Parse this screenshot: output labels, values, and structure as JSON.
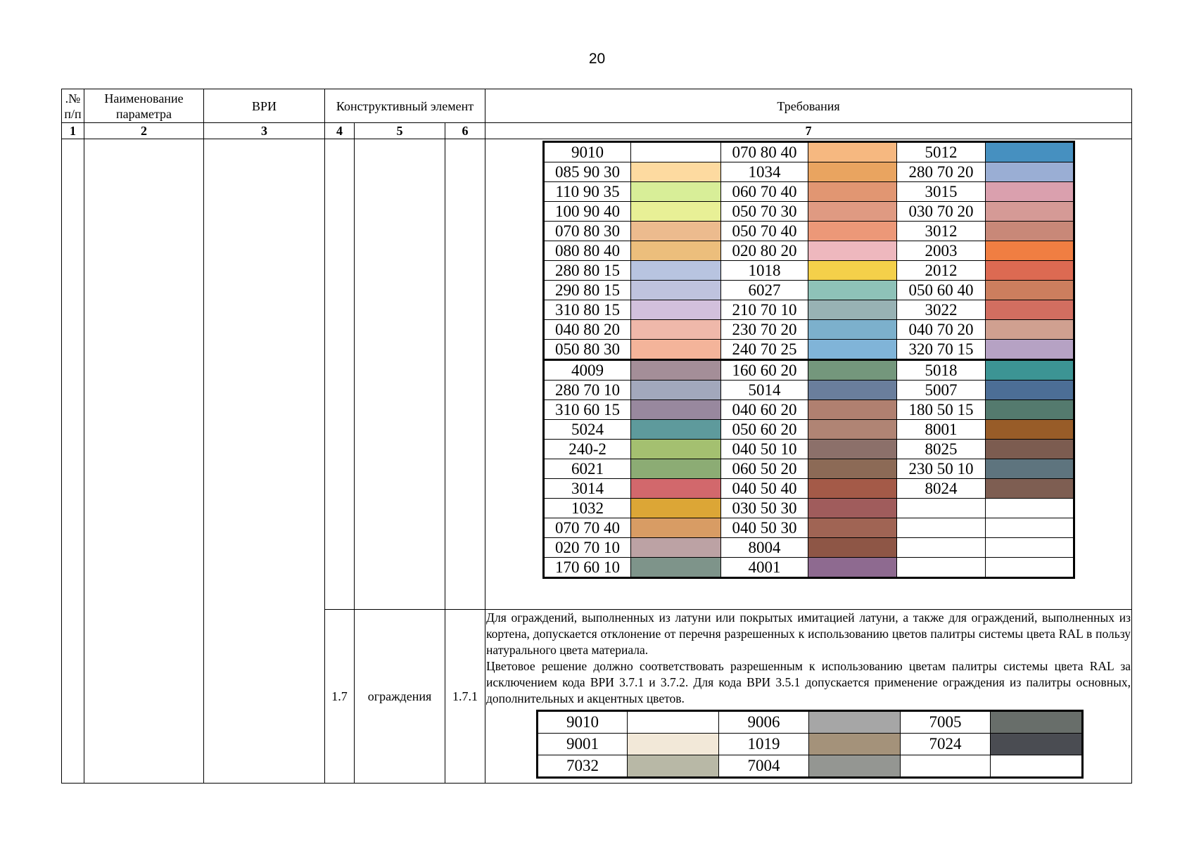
{
  "page_number": "20",
  "header": {
    "col1": ".№ п/п",
    "col2": "Наименование параметра",
    "col3": "ВРИ",
    "col4": "Конструктивный элемент",
    "col7": "Требования"
  },
  "column_numbers": [
    "1",
    "2",
    "3",
    "4",
    "5",
    "6",
    "7"
  ],
  "palette_top": {
    "rows": [
      [
        {
          "code": "9010",
          "color": "#ffffff"
        },
        {
          "code": "070 80 40",
          "color": "#f6b880"
        },
        {
          "code": "5012",
          "color": "#4690c0"
        }
      ],
      [
        {
          "code": "085 90 30",
          "color": "#fddaa0"
        },
        {
          "code": "1034",
          "color": "#e9a460"
        },
        {
          "code": "280 70 20",
          "color": "#9aaed4"
        }
      ],
      [
        {
          "code": "110 90 35",
          "color": "#d8ee98"
        },
        {
          "code": "060 70 40",
          "color": "#e19672"
        },
        {
          "code": "3015",
          "color": "#daa0ae"
        }
      ],
      [
        {
          "code": "100 90 40",
          "color": "#e8f096"
        },
        {
          "code": "050 70 30",
          "color": "#df9a82"
        },
        {
          "code": "030 70 20",
          "color": "#d59a96"
        }
      ],
      [
        {
          "code": "070 80 30",
          "color": "#ecbb8e"
        },
        {
          "code": "050 70 40",
          "color": "#ec9878"
        },
        {
          "code": "3012",
          "color": "#c88878"
        }
      ],
      [
        {
          "code": "080 80 40",
          "color": "#ecbe7c"
        },
        {
          "code": "020 80 20",
          "color": "#eeb8be"
        },
        {
          "code": "2003",
          "color": "#f07e42"
        }
      ],
      [
        {
          "code": "280 80 15",
          "color": "#b8c4e0"
        },
        {
          "code": "1018",
          "color": "#f4d04a"
        },
        {
          "code": "2012",
          "color": "#dc6a52"
        }
      ],
      [
        {
          "code": "290 80 15",
          "color": "#bfc3de"
        },
        {
          "code": "6027",
          "color": "#8ec2b8"
        },
        {
          "code": "050 60 40",
          "color": "#cc7e5e"
        }
      ],
      [
        {
          "code": "310 80 15",
          "color": "#d2c0dc"
        },
        {
          "code": "210 70 10",
          "color": "#98b2b4"
        },
        {
          "code": "3022",
          "color": "#d26e60"
        }
      ],
      [
        {
          "code": "040 80 20",
          "color": "#efb8aa"
        },
        {
          "code": "230 70 20",
          "color": "#7cb0cc"
        },
        {
          "code": "040 70 20",
          "color": "#d0a090"
        }
      ],
      [
        {
          "code": "050 80 30",
          "color": "#f4b49a"
        },
        {
          "code": "240 70 25",
          "color": "#80b4d8"
        },
        {
          "code": "320 70 15",
          "color": "#b6a2c4"
        }
      ],
      [
        {
          "code": "4009",
          "color": "#a48e98"
        },
        {
          "code": "160 60 20",
          "color": "#74977c"
        },
        {
          "code": "5018",
          "color": "#3c9494"
        }
      ],
      [
        {
          "code": "280 70 10",
          "color": "#a2a8bc"
        },
        {
          "code": "5014",
          "color": "#6a7e9c"
        },
        {
          "code": "5007",
          "color": "#4c6e96"
        }
      ],
      [
        {
          "code": "310 60 15",
          "color": "#98889e"
        },
        {
          "code": "040 60 20",
          "color": "#b08070"
        },
        {
          "code": "180 50 15",
          "color": "#547a6e"
        }
      ],
      [
        {
          "code": "5024",
          "color": "#5e9a9c"
        },
        {
          "code": "050 60 20",
          "color": "#b08474"
        },
        {
          "code": "8001",
          "color": "#985c28"
        }
      ],
      [
        {
          "code": "240-2",
          "color": "#a4c070"
        },
        {
          "code": "040 50 10",
          "color": "#8c706a"
        },
        {
          "code": "8025",
          "color": "#7c5c50"
        }
      ],
      [
        {
          "code": "6021",
          "color": "#8cac74"
        },
        {
          "code": "060 50 20",
          "color": "#8c6a56"
        },
        {
          "code": "230 50 10",
          "color": "#5e747e"
        }
      ],
      [
        {
          "code": "3014",
          "color": "#d2686c"
        },
        {
          "code": "040 50 40",
          "color": "#a45a48"
        },
        {
          "code": "8024",
          "color": "#7e5e52"
        }
      ],
      [
        {
          "code": "1032",
          "color": "#dca636"
        },
        {
          "code": "030 50 30",
          "color": "#a05c5c"
        },
        {
          "code": "",
          "color": "#ffffff"
        }
      ],
      [
        {
          "code": "070 70 40",
          "color": "#d89c64"
        },
        {
          "code": "040 50 30",
          "color": "#a06454"
        },
        {
          "code": "",
          "color": "#ffffff"
        }
      ],
      [
        {
          "code": "020 70 10",
          "color": "#bca2a4"
        },
        {
          "code": "8004",
          "color": "#8e5646"
        },
        {
          "code": "",
          "color": "#ffffff"
        }
      ],
      [
        {
          "code": "170 60 10",
          "color": "#7e948a"
        },
        {
          "code": "4001",
          "color": "#8e6a90"
        },
        {
          "code": "",
          "color": "#ffffff"
        }
      ]
    ]
  },
  "row_fence": {
    "section": "1.7",
    "element": "ограждения",
    "item": "1.7.1",
    "paragraph1": "Для ограждений, выполненных из латуни или покрытых имитацией латуни, а также для ограждений, выполненных из кортена, допускается отклонение от перечня разрешенных к использованию цветов палитры системы цвета RAL в пользу натурального цвета материала.",
    "paragraph2": "Цветовое решение должно соответствовать разрешенным к использованию цветам палитры системы цвета RAL за исключением кода ВРИ 3.7.1 и 3.7.2. Для кода ВРИ 3.5.1 допускается применение ограждения из палитры основных, дополнительных и акцентных цветов."
  },
  "palette_fence": {
    "rows": [
      [
        {
          "code": "9010",
          "color": "#ffffff"
        },
        {
          "code": "9006",
          "color": "#a6a6a6"
        },
        {
          "code": "7005",
          "color": "#686e6a"
        }
      ],
      [
        {
          "code": "9001",
          "color": "#f2e8d8"
        },
        {
          "code": "1019",
          "color": "#a4927a"
        },
        {
          "code": "7024",
          "color": "#4a4c52"
        }
      ],
      [
        {
          "code": "7032",
          "color": "#b8b8a6"
        },
        {
          "code": "7004",
          "color": "#949692"
        },
        {
          "code": "",
          "color": "#ffffff"
        }
      ]
    ]
  }
}
